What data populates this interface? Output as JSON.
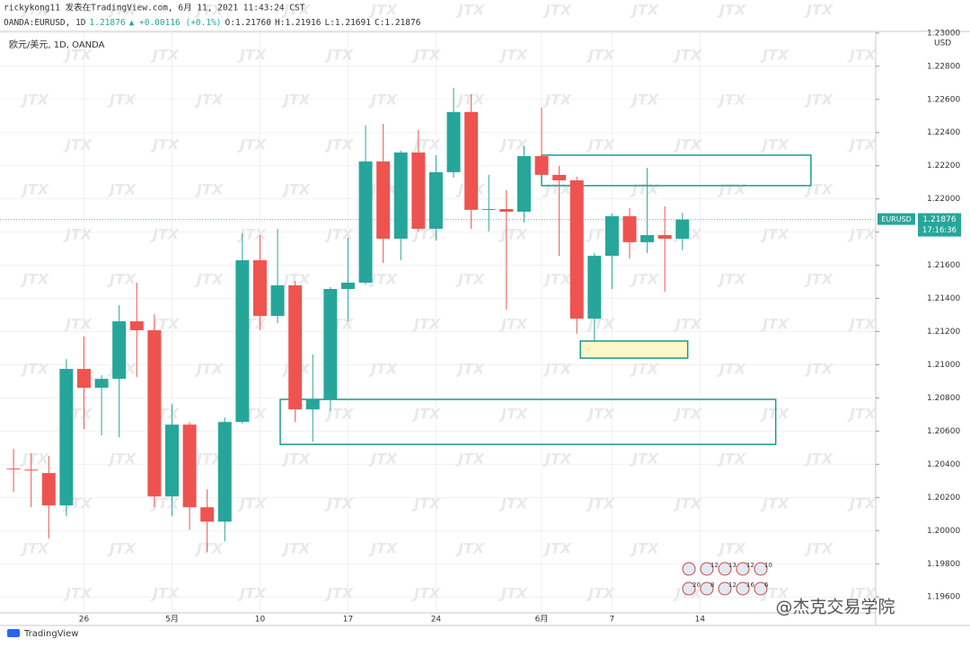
{
  "chart_data": {
    "type": "candlestick",
    "header": "rickykong11 发表在TradingView.com, 6月 11, 2021 11:43:24 CST",
    "quote": [
      "OANDA:EURUSD, 1D",
      "1.21876",
      "▲ +0.00116 (+0.1%)",
      "O:1.21760",
      "H:1.21916",
      "L:1.21691",
      "C:1.21876"
    ],
    "legend": "欧元/美元, 1D, OANDA",
    "y_unit": "USD",
    "last_price": {
      "symbol": "EURUSD",
      "label": "1.21876",
      "countdown": "17:16:36"
    },
    "logo": "TradingView",
    "watermark": "@杰克交易学院",
    "watermark_pattern": "JTX",
    "up_color": "#26a69a",
    "down_color": "#ef5350",
    "grid": true,
    "x": [
      0,
      1,
      2,
      3,
      4,
      5,
      6,
      7,
      8,
      9,
      10,
      11,
      12,
      13,
      14,
      15,
      16,
      17,
      18,
      19,
      20,
      21,
      22,
      23,
      24,
      25,
      26,
      27,
      28,
      29,
      30,
      31,
      32,
      33,
      34,
      35,
      36,
      37,
      38
    ],
    "open": [
      1.20374,
      1.20368,
      1.20347,
      1.20152,
      1.20975,
      1.20861,
      1.20915,
      1.21262,
      1.21208,
      1.20206,
      1.20639,
      1.20141,
      1.20054,
      1.20655,
      1.2163,
      1.21294,
      1.21479,
      1.20731,
      1.20791,
      1.21457,
      1.21495,
      1.22226,
      1.2176,
      1.2228,
      1.2182,
      1.22161,
      1.22524,
      1.21934,
      1.21939,
      1.21923,
      1.22258,
      1.22145,
      1.22112,
      1.21278,
      1.21657,
      1.21896,
      1.21739,
      1.21782,
      1.2176
    ],
    "high": [
      1.20493,
      1.20466,
      1.2045,
      1.21034,
      1.2117,
      1.20937,
      1.21359,
      1.21495,
      1.21305,
      1.20764,
      1.20655,
      1.20249,
      1.20682,
      1.21793,
      1.21782,
      1.2182,
      1.21506,
      1.21062,
      1.21468,
      1.21766,
      1.22443,
      1.22453,
      1.22291,
      1.22416,
      1.22264,
      1.2267,
      1.22632,
      1.22145,
      1.22053,
      1.22318,
      1.22551,
      1.22199,
      1.22134,
      1.21674,
      1.21912,
      1.21944,
      1.22188,
      1.21955,
      1.21916
    ],
    "low": [
      1.20233,
      1.20141,
      1.19951,
      1.20087,
      1.20612,
      1.20574,
      1.20563,
      1.20926,
      1.20141,
      1.20087,
      1.20005,
      1.1987,
      1.19935,
      1.20645,
      1.21208,
      1.21251,
      1.20655,
      1.20536,
      1.2072,
      1.21262,
      1.21484,
      1.21614,
      1.2163,
      1.21804,
      1.21749,
      1.22128,
      1.2182,
      1.21804,
      1.21332,
      1.21858,
      1.22139,
      1.21657,
      1.21186,
      1.21143,
      1.21457,
      1.21641,
      1.21674,
      1.21441,
      1.21691
    ],
    "close": [
      1.2037,
      1.20365,
      1.20152,
      1.20975,
      1.20861,
      1.20915,
      1.21262,
      1.21208,
      1.20206,
      1.20639,
      1.20141,
      1.20054,
      1.20655,
      1.2163,
      1.21294,
      1.21479,
      1.20731,
      1.20791,
      1.21457,
      1.21495,
      1.22226,
      1.2176,
      1.2228,
      1.2182,
      1.22161,
      1.22524,
      1.21934,
      1.21939,
      1.21923,
      1.22258,
      1.22145,
      1.22112,
      1.21278,
      1.21657,
      1.21896,
      1.21739,
      1.21782,
      1.2176,
      1.21876
    ],
    "xlim": [
      -0.77,
      48.98
    ],
    "xticks": [
      {
        "value": 4,
        "label": "26"
      },
      {
        "value": 9,
        "label": "5月"
      },
      {
        "value": 14,
        "label": "10"
      },
      {
        "value": 19,
        "label": "17"
      },
      {
        "value": 24,
        "label": "24"
      },
      {
        "value": 30,
        "label": "6月"
      },
      {
        "value": 34,
        "label": "7"
      },
      {
        "value": 39,
        "label": "14"
      }
    ],
    "ylim": [
      1.1952,
      1.2301
    ],
    "yticks": [
      {
        "value": 1.196,
        "label": "1.19600"
      },
      {
        "value": 1.198,
        "label": "1.19800"
      },
      {
        "value": 1.2,
        "label": "1.20000"
      },
      {
        "value": 1.202,
        "label": "1.20200"
      },
      {
        "value": 1.204,
        "label": "1.20400"
      },
      {
        "value": 1.206,
        "label": "1.20600"
      },
      {
        "value": 1.208,
        "label": "1.20800"
      },
      {
        "value": 1.21,
        "label": "1.21000"
      },
      {
        "value": 1.212,
        "label": "1.21200"
      },
      {
        "value": 1.214,
        "label": "1.21400"
      },
      {
        "value": 1.216,
        "label": "1.21600"
      },
      {
        "value": 1.218,
        "label": "1.21800"
      },
      {
        "value": 1.22,
        "label": "1.22000"
      },
      {
        "value": 1.222,
        "label": "1.22200"
      },
      {
        "value": 1.224,
        "label": "1.22400"
      },
      {
        "value": 1.226,
        "label": "1.22600"
      },
      {
        "value": 1.228,
        "label": "1.22800"
      },
      {
        "value": 1.23,
        "label": "1.23000"
      }
    ],
    "zones": [
      {
        "x0": 30,
        "x1": 45.3,
        "y0": 1.2208,
        "y1": 1.22264,
        "color": "#1a9c8c",
        "fill": "none"
      },
      {
        "x0": 32.2,
        "x1": 38.3,
        "y0": 1.2104,
        "y1": 1.21143,
        "color": "#1a9c8c",
        "fill": "#fbf7c8"
      },
      {
        "x0": 15.15,
        "x1": 43.3,
        "y0": 1.2052,
        "y1": 1.20791,
        "color": "#1a9c8c",
        "fill": "none"
      }
    ],
    "events": [
      [
        "12",
        "13",
        "12",
        "10"
      ],
      [
        "20",
        "8",
        "12",
        "16",
        "6"
      ]
    ]
  }
}
